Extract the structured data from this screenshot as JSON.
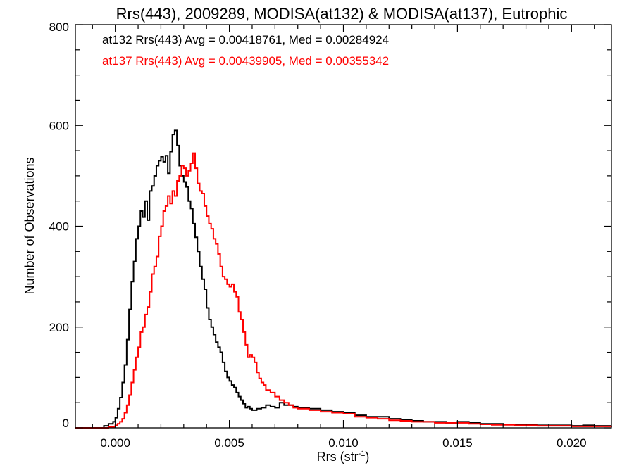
{
  "chart_data": {
    "type": "line",
    "title": "Rrs(443), 2009289, MODISA(at132) & MODISA(at137), Eutrophic",
    "xlabel": "Rrs (str",
    "xlabel_sup": "-1",
    "xlabel_close": ")",
    "ylabel": "Number of Observations",
    "xlim": [
      -0.00175,
      0.02175
    ],
    "ylim": [
      0,
      800
    ],
    "xticks": [
      0.0,
      0.005,
      0.01,
      0.015,
      0.02
    ],
    "xtick_labels": [
      "0.000",
      "0.005",
      "0.010",
      "0.015",
      "0.020"
    ],
    "yticks": [
      0,
      200,
      400,
      600,
      800
    ],
    "ytick_labels": [
      "0",
      "200",
      "400",
      "600",
      "800"
    ],
    "grid": false,
    "legend": "top-left",
    "series": [
      {
        "name": "at132",
        "color": "#000000",
        "stats": "at132 Rrs(443) Avg = 0.00418761, Med = 0.00284924",
        "points": [
          [
            -0.0019,
            0
          ],
          [
            -0.0009,
            0
          ],
          [
            -0.0005,
            4
          ],
          [
            -0.0003,
            8
          ],
          [
            -0.0001,
            12
          ],
          [
            0.0,
            20
          ],
          [
            0.0001,
            38
          ],
          [
            0.0002,
            60
          ],
          [
            0.0003,
            90
          ],
          [
            0.0004,
            125
          ],
          [
            0.0005,
            175
          ],
          [
            0.0006,
            235
          ],
          [
            0.0007,
            290
          ],
          [
            0.0008,
            330
          ],
          [
            0.0009,
            375
          ],
          [
            0.001,
            400
          ],
          [
            0.0011,
            430
          ],
          [
            0.0012,
            418
          ],
          [
            0.0013,
            450
          ],
          [
            0.0014,
            412
          ],
          [
            0.0015,
            470
          ],
          [
            0.0016,
            480
          ],
          [
            0.0017,
            500
          ],
          [
            0.0018,
            520
          ],
          [
            0.0019,
            530
          ],
          [
            0.002,
            538
          ],
          [
            0.0021,
            528
          ],
          [
            0.0022,
            540
          ],
          [
            0.0023,
            505
          ],
          [
            0.0024,
            548
          ],
          [
            0.0025,
            582
          ],
          [
            0.0026,
            590
          ],
          [
            0.0027,
            560
          ],
          [
            0.0028,
            520
          ],
          [
            0.0029,
            500
          ],
          [
            0.003,
            488
          ],
          [
            0.0031,
            478
          ],
          [
            0.0032,
            450
          ],
          [
            0.0033,
            435
          ],
          [
            0.0034,
            405
          ],
          [
            0.0035,
            378
          ],
          [
            0.0036,
            350
          ],
          [
            0.0037,
            320
          ],
          [
            0.0038,
            295
          ],
          [
            0.0039,
            275
          ],
          [
            0.004,
            238
          ],
          [
            0.0041,
            215
          ],
          [
            0.0042,
            200
          ],
          [
            0.0043,
            185
          ],
          [
            0.0044,
            170
          ],
          [
            0.0045,
            160
          ],
          [
            0.0046,
            150
          ],
          [
            0.0047,
            130
          ],
          [
            0.0048,
            112
          ],
          [
            0.0049,
            100
          ],
          [
            0.005,
            93
          ],
          [
            0.0051,
            85
          ],
          [
            0.0052,
            80
          ],
          [
            0.0053,
            70
          ],
          [
            0.0054,
            62
          ],
          [
            0.0055,
            55
          ],
          [
            0.0056,
            48
          ],
          [
            0.0057,
            40
          ],
          [
            0.0058,
            42
          ],
          [
            0.0059,
            38
          ],
          [
            0.006,
            35
          ],
          [
            0.0062,
            38
          ],
          [
            0.0064,
            40
          ],
          [
            0.0066,
            45
          ],
          [
            0.0068,
            42
          ],
          [
            0.007,
            40
          ],
          [
            0.0072,
            50
          ],
          [
            0.0074,
            45
          ],
          [
            0.0076,
            45
          ],
          [
            0.0078,
            42
          ],
          [
            0.008,
            40
          ],
          [
            0.0085,
            38
          ],
          [
            0.009,
            35
          ],
          [
            0.0095,
            32
          ],
          [
            0.01,
            30
          ],
          [
            0.0105,
            25
          ],
          [
            0.011,
            22
          ],
          [
            0.0115,
            22
          ],
          [
            0.012,
            18
          ],
          [
            0.0125,
            16
          ],
          [
            0.013,
            14
          ],
          [
            0.0135,
            12
          ],
          [
            0.014,
            12
          ],
          [
            0.0145,
            10
          ],
          [
            0.015,
            12
          ],
          [
            0.0155,
            10
          ],
          [
            0.016,
            8
          ],
          [
            0.0165,
            8
          ],
          [
            0.017,
            7
          ],
          [
            0.0175,
            6
          ],
          [
            0.018,
            6
          ],
          [
            0.0185,
            5
          ],
          [
            0.019,
            5
          ],
          [
            0.0195,
            5
          ],
          [
            0.02,
            4
          ],
          [
            0.0205,
            5
          ],
          [
            0.021,
            4
          ],
          [
            0.0215,
            4
          ],
          [
            0.0218,
            4
          ]
        ]
      },
      {
        "name": "at137",
        "color": "#ff0000",
        "stats": "at137 Rrs(443) Avg = 0.00439905, Med = 0.00355342",
        "points": [
          [
            -0.0019,
            0
          ],
          [
            -0.0005,
            0
          ],
          [
            -0.0003,
            2
          ],
          [
            0.0,
            5
          ],
          [
            0.0001,
            8
          ],
          [
            0.0002,
            12
          ],
          [
            0.0003,
            18
          ],
          [
            0.0004,
            30
          ],
          [
            0.0005,
            45
          ],
          [
            0.0006,
            65
          ],
          [
            0.0007,
            90
          ],
          [
            0.0008,
            115
          ],
          [
            0.0009,
            140
          ],
          [
            0.001,
            160
          ],
          [
            0.0011,
            190
          ],
          [
            0.0012,
            200
          ],
          [
            0.0013,
            225
          ],
          [
            0.0014,
            240
          ],
          [
            0.0015,
            270
          ],
          [
            0.0016,
            305
          ],
          [
            0.0017,
            320
          ],
          [
            0.0018,
            340
          ],
          [
            0.0019,
            380
          ],
          [
            0.002,
            400
          ],
          [
            0.0021,
            430
          ],
          [
            0.0022,
            440
          ],
          [
            0.0023,
            460
          ],
          [
            0.0024,
            445
          ],
          [
            0.0025,
            470
          ],
          [
            0.0026,
            460
          ],
          [
            0.0027,
            490
          ],
          [
            0.0028,
            500
          ],
          [
            0.0029,
            520
          ],
          [
            0.003,
            515
          ],
          [
            0.0031,
            500
          ],
          [
            0.0032,
            510
          ],
          [
            0.0033,
            525
          ],
          [
            0.0034,
            545
          ],
          [
            0.0035,
            515
          ],
          [
            0.0036,
            485
          ],
          [
            0.0037,
            470
          ],
          [
            0.0038,
            465
          ],
          [
            0.0039,
            440
          ],
          [
            0.004,
            420
          ],
          [
            0.0041,
            405
          ],
          [
            0.0042,
            395
          ],
          [
            0.0043,
            375
          ],
          [
            0.0044,
            365
          ],
          [
            0.0045,
            345
          ],
          [
            0.0046,
            320
          ],
          [
            0.0047,
            300
          ],
          [
            0.0048,
            295
          ],
          [
            0.0049,
            285
          ],
          [
            0.005,
            280
          ],
          [
            0.0051,
            285
          ],
          [
            0.0052,
            270
          ],
          [
            0.0053,
            260
          ],
          [
            0.0054,
            230
          ],
          [
            0.0055,
            215
          ],
          [
            0.0056,
            190
          ],
          [
            0.0057,
            165
          ],
          [
            0.0058,
            140
          ],
          [
            0.0059,
            145
          ],
          [
            0.006,
            140
          ],
          [
            0.0061,
            130
          ],
          [
            0.0062,
            110
          ],
          [
            0.0063,
            98
          ],
          [
            0.0064,
            90
          ],
          [
            0.0065,
            85
          ],
          [
            0.0066,
            75
          ],
          [
            0.0068,
            70
          ],
          [
            0.007,
            62
          ],
          [
            0.0072,
            55
          ],
          [
            0.0074,
            50
          ],
          [
            0.0076,
            45
          ],
          [
            0.0078,
            40
          ],
          [
            0.008,
            38
          ],
          [
            0.0085,
            35
          ],
          [
            0.009,
            32
          ],
          [
            0.0095,
            30
          ],
          [
            0.01,
            28
          ],
          [
            0.0105,
            22
          ],
          [
            0.011,
            20
          ],
          [
            0.0115,
            18
          ],
          [
            0.012,
            15
          ],
          [
            0.0125,
            14
          ],
          [
            0.013,
            12
          ],
          [
            0.0135,
            12
          ],
          [
            0.014,
            10
          ],
          [
            0.0145,
            10
          ],
          [
            0.015,
            10
          ],
          [
            0.0155,
            8
          ],
          [
            0.016,
            7
          ],
          [
            0.0165,
            6
          ],
          [
            0.017,
            6
          ],
          [
            0.0175,
            5
          ],
          [
            0.018,
            5
          ],
          [
            0.0185,
            4
          ],
          [
            0.019,
            4
          ],
          [
            0.0195,
            4
          ],
          [
            0.02,
            3
          ],
          [
            0.0205,
            3
          ],
          [
            0.021,
            3
          ],
          [
            0.0215,
            3
          ],
          [
            0.0218,
            2
          ]
        ]
      }
    ]
  }
}
